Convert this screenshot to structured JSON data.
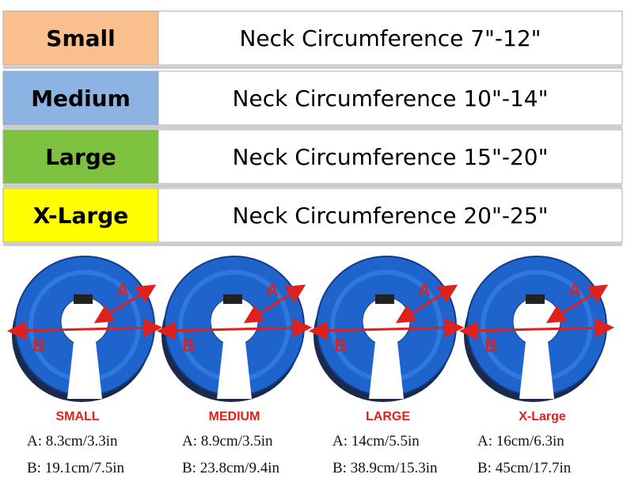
{
  "table": {
    "rows": [
      {
        "size": "Small",
        "neck": "Neck Circumference 7\"-12\""
      },
      {
        "size": "Medium",
        "neck": "Neck Circumference 10\"-14\""
      },
      {
        "size": "Large",
        "neck": "Neck Circumference 15\"-20\""
      },
      {
        "size": "X-Large",
        "neck": "Neck Circumference 20\"-25\""
      }
    ]
  },
  "products": [
    {
      "name": "SMALL",
      "marker_a": "A",
      "marker_b": "B",
      "a": "A: 8.3cm/3.3in",
      "b": "B: 19.1cm/7.5in"
    },
    {
      "name": "MEDIUM",
      "marker_a": "A",
      "marker_b": "B",
      "a": "A: 8.9cm/3.5in",
      "b": "B: 23.8cm/9.4in"
    },
    {
      "name": "LARGE",
      "marker_a": "A",
      "marker_b": "B",
      "a": "A: 14cm/5.5in",
      "b": "B: 38.9cm/15.3in"
    },
    {
      "name": "X-Large",
      "marker_a": "A",
      "marker_b": "B",
      "a": "A: 16cm/6.3in",
      "b": "B: 45cm/17.7in"
    }
  ]
}
